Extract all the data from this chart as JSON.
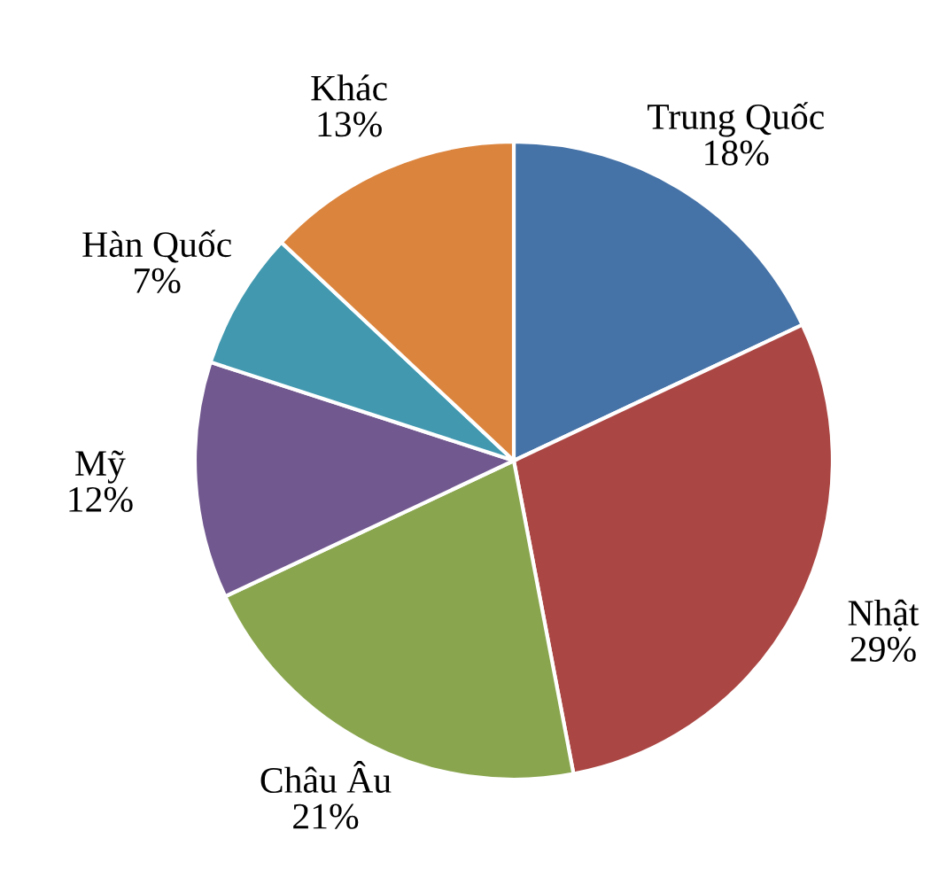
{
  "chart_data": {
    "type": "pie",
    "categories": [
      "Trung Quốc",
      "Nhật",
      "Châu Âu",
      "Mỹ",
      "Hàn Quốc",
      "Khác"
    ],
    "values": [
      18,
      29,
      21,
      12,
      7,
      13
    ],
    "value_labels": [
      "18%",
      "29%",
      "21%",
      "12%",
      "7%",
      "13%"
    ],
    "colors": [
      "#4572a7",
      "#aa4643",
      "#89a54e",
      "#71588f",
      "#4198af",
      "#db843d"
    ],
    "legend": false
  }
}
